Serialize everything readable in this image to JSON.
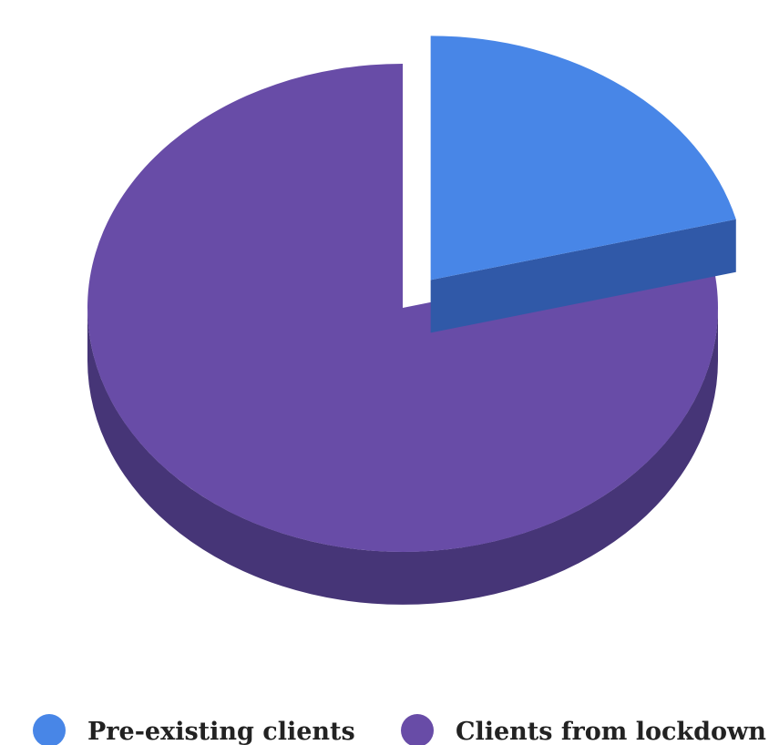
{
  "chart_data": {
    "type": "pie",
    "style": "3d-exploded",
    "title": "",
    "slices": [
      {
        "label": "Pre-existing clients",
        "value": 21,
        "color": "#4886E7",
        "side_color": "#3059A8",
        "exploded": true
      },
      {
        "label": "Clients from lockdown",
        "value": 79,
        "color": "#684CA7",
        "side_color": "#463577",
        "exploded": false
      }
    ],
    "legend_position": "bottom"
  }
}
